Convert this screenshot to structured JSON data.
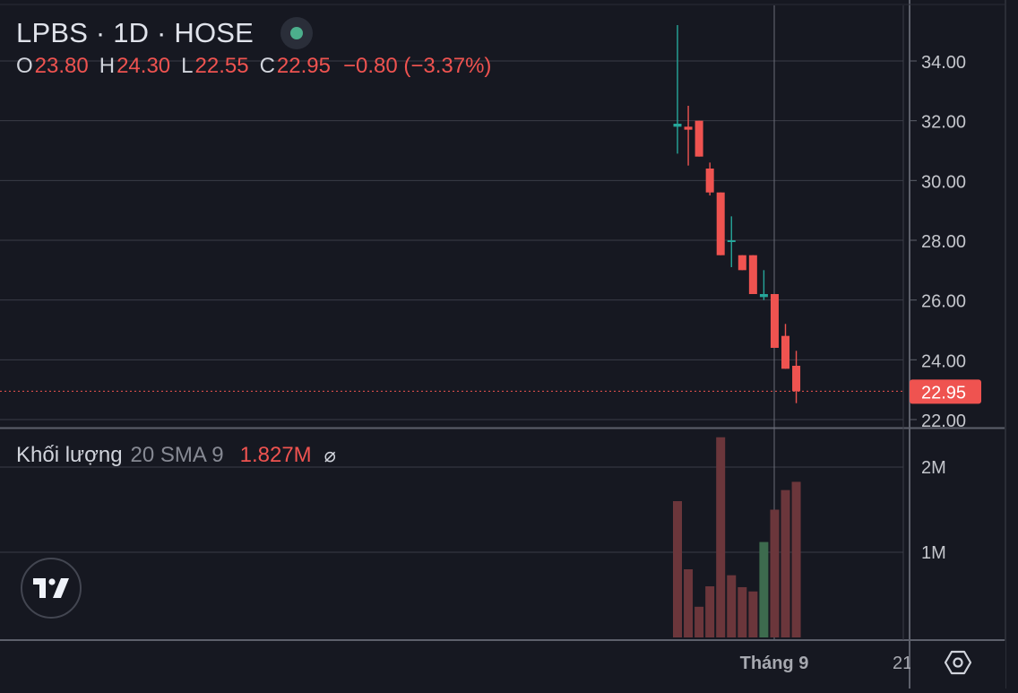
{
  "header": {
    "symbol_title": "LPBS · 1D · HOSE",
    "status_color": "#4caf8c",
    "ohlc": {
      "o_label": "O",
      "o_value": "23.80",
      "h_label": "H",
      "h_value": "24.30",
      "l_label": "L",
      "l_value": "22.55",
      "c_label": "C",
      "c_value": "22.95",
      "change": "−0.80 (−3.37%)"
    }
  },
  "volume_legend": {
    "name": "Khối lượng",
    "params": "20 SMA 9",
    "value": "1.827M",
    "hide_icon": "⌀"
  },
  "colors": {
    "up": "#26a69a",
    "down": "#ef5350",
    "volume_up": "#3d6b4e",
    "volume_down": "#6b363b",
    "background": "#161821",
    "grid": "#3a3d47",
    "axis_text": "#c4c6cc"
  },
  "icons": {
    "logo": "tradingview-logo-icon",
    "settings": "settings-hexagon-icon"
  },
  "chart_data": {
    "type": "candlestick",
    "price_axis": {
      "ticks": [
        "22.00",
        "24.00",
        "26.00",
        "28.00",
        "30.00",
        "32.00",
        "34.00"
      ],
      "range": [
        21.8,
        35.9
      ],
      "last_price_label": "22.95",
      "last_price": 22.95
    },
    "volume_axis": {
      "ticks": [
        "1M",
        "2M"
      ],
      "range": [
        0,
        2.35
      ]
    },
    "time_axis": {
      "labels": [
        "Tháng 9",
        "21"
      ]
    },
    "crosshair_label_value": "Tháng 9",
    "candles": [
      {
        "o": 31.8,
        "h": 35.2,
        "l": 30.9,
        "c": 31.9
      },
      {
        "o": 31.8,
        "h": 32.5,
        "l": 30.5,
        "c": 31.7
      },
      {
        "o": 32.0,
        "h": 32.0,
        "l": 30.8,
        "c": 30.8
      },
      {
        "o": 30.4,
        "h": 30.6,
        "l": 29.5,
        "c": 29.6
      },
      {
        "o": 29.6,
        "h": 29.6,
        "l": 27.5,
        "c": 27.5
      },
      {
        "o": 28.0,
        "h": 28.8,
        "l": 27.1,
        "c": 28.0
      },
      {
        "o": 27.5,
        "h": 27.5,
        "l": 27.0,
        "c": 27.0
      },
      {
        "o": 27.5,
        "h": 27.5,
        "l": 26.2,
        "c": 26.2
      },
      {
        "o": 26.1,
        "h": 27.0,
        "l": 26.0,
        "c": 26.2
      },
      {
        "o": 26.2,
        "h": 26.2,
        "l": 24.4,
        "c": 24.4
      },
      {
        "o": 24.8,
        "h": 25.2,
        "l": 23.7,
        "c": 23.7
      },
      {
        "o": 23.8,
        "h": 24.3,
        "l": 22.55,
        "c": 22.95
      }
    ],
    "volumes": [
      1.6,
      0.8,
      0.36,
      0.6,
      2.35,
      0.73,
      0.59,
      0.54,
      1.12,
      1.5,
      1.73,
      1.827
    ],
    "volume_up_flags": [
      false,
      false,
      false,
      false,
      false,
      false,
      false,
      false,
      true,
      false,
      false,
      false
    ]
  }
}
